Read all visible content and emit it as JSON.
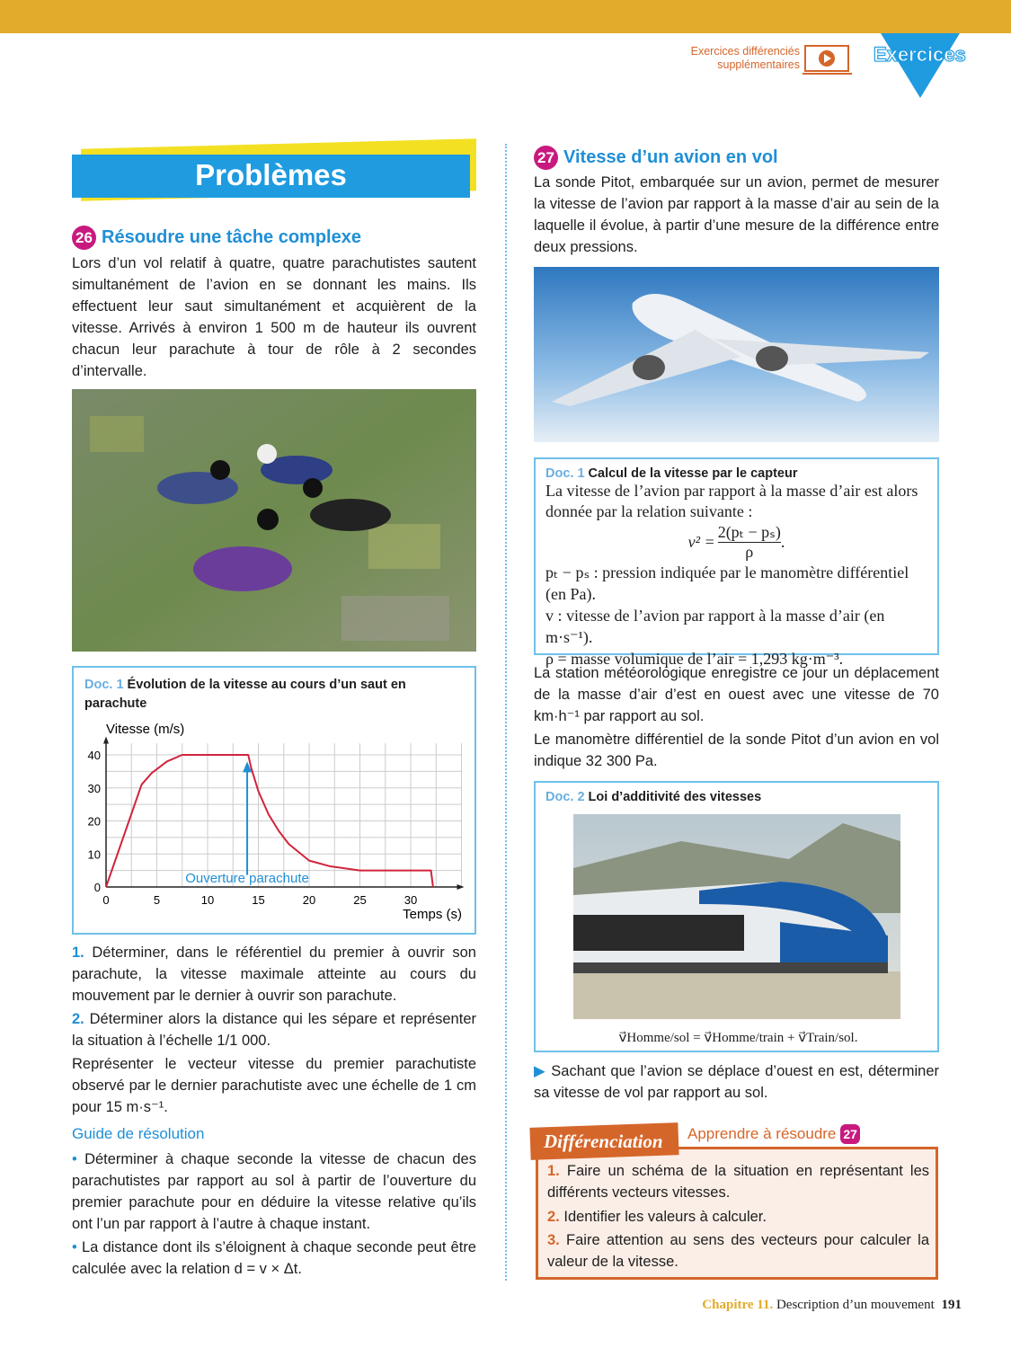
{
  "header": {
    "link_line1": "Exercices différenciés",
    "link_line2": "supplémentaires",
    "badge": "Exercices",
    "video_icon": "laptop-play-icon"
  },
  "left": {
    "section_title": "Problèmes",
    "ex26": {
      "num": "26",
      "title": "Résoudre une tâche complexe",
      "text": "Lors d’un vol relatif à quatre, quatre parachutistes sautent simultanément de l’avion en se donnant les mains. Ils effectuent leur saut simultanément et acquièrent de la vitesse. Arrivés à environ 1 500 m de hauteur ils ouvrent chacun leur parachute à tour de rôle à 2 secondes d’intervalle."
    },
    "doc1": {
      "label": "Doc. 1",
      "title": "Évolution de la vitesse au cours d’un saut en parachute"
    },
    "q1_num": "1.",
    "q1": "Déterminer, dans le référentiel du premier à ouvrir son parachute, la vitesse maximale atteinte au cours du mouvement par le dernier à ouvrir son parachute.",
    "q2_num": "2.",
    "q2": "Déterminer alors la distance qui les sépare et représenter la situation à l’échelle 1/1 000.",
    "q2b": "Représenter le vecteur vitesse du premier parachutiste observé par le dernier parachutiste avec une échelle de 1 cm pour 15 m·s⁻¹.",
    "guide_title": "Guide de résolution",
    "guide": [
      "Déterminer à chaque seconde la vitesse de chacun des parachutistes par rapport au sol à partir de l’ouverture du premier parachute pour en déduire la vitesse relative qu’ils ont l’un par rapport à l’autre à chaque instant.",
      "La distance dont ils s’éloignent à chaque seconde peut être calculée avec la relation d = v × Δt."
    ]
  },
  "chart_data": {
    "type": "line",
    "ylabel": "Vitesse (m/s)",
    "xlabel": "Temps (s)",
    "xlim": [
      0,
      35
    ],
    "ylim": [
      0,
      45
    ],
    "xticks": [
      "0",
      "5",
      "10",
      "15",
      "20",
      "25",
      "30"
    ],
    "yticks": [
      "0",
      "10",
      "20",
      "30",
      "40"
    ],
    "grid": true,
    "series": [
      {
        "color": "#d2233c",
        "x": [
          0,
          3.5,
          4.5,
          6,
          7.5,
          14,
          14.3,
          15,
          16,
          17,
          18,
          20,
          22,
          25,
          32,
          32.2
        ],
        "y": [
          0,
          31,
          34.5,
          38,
          40,
          40,
          36,
          29,
          22,
          17,
          13,
          8,
          6.3,
          5,
          5,
          0
        ]
      }
    ],
    "annotation": {
      "text": "Ouverture parachute",
      "x": 13.9,
      "y_from": 2,
      "y_to": 38,
      "color": "#1f8fd6"
    }
  },
  "right": {
    "ex27": {
      "num": "27",
      "title": "Vitesse d’un avion en vol",
      "text": "La sonde Pitot, embarquée sur un avion, permet de mesurer la vitesse de l’avion par rapport à la masse d’air au sein de la laquelle il évolue, à partir d’une mesure de la différence entre deux pressions."
    },
    "doc1": {
      "label": "Doc. 1",
      "title": "Calcul de la vitesse par le capteur",
      "l1": "La vitesse de l’avion par rapport à la masse d’air est alors donnée par la relation suivante :",
      "formula_lhs": "v² =",
      "formula_num": "2(pₜ − pₛ)",
      "formula_den": "ρ",
      "l2": "pₜ − pₛ : pression indiquée par le manomètre différentiel (en Pa).",
      "l3": "v : vitesse de l’avion par rapport à la masse d’air (en m·s⁻¹).",
      "l4": "ρ = masse volumique de l’air = 1,293 kg·m⁻³."
    },
    "p2": "La station météorologique enregistre ce jour un déplacement de la masse d’air d’est en ouest avec une vitesse de 70 km·h⁻¹ par rapport au sol.",
    "p3": "Le manomètre différentiel de la sonde Pitot d’un avion en vol indique 32 300 Pa.",
    "doc2": {
      "label": "Doc. 2",
      "title": "Loi d’additivité des vitesses",
      "formula": "v⃗Homme/sol = v⃗Homme/train + v⃗Train/sol."
    },
    "question": "Sachant que l’avion se déplace d’ouest en est, déterminer sa vitesse de vol par rapport au sol.",
    "diff": {
      "tag": "Différenciation",
      "link": "Apprendre à résoudre",
      "link_num": "27",
      "items": [
        {
          "n": "1.",
          "t": "Faire un schéma de la situation en représentant les différents vecteurs vitesses."
        },
        {
          "n": "2.",
          "t": "Identifier les valeurs à calculer."
        },
        {
          "n": "3.",
          "t": "Faire attention au sens des vecteurs pour calculer la valeur de la vitesse."
        }
      ]
    }
  },
  "footer": {
    "chapter": "Chapitre 11.",
    "title": "Description d’un mouvement",
    "page": "191"
  }
}
